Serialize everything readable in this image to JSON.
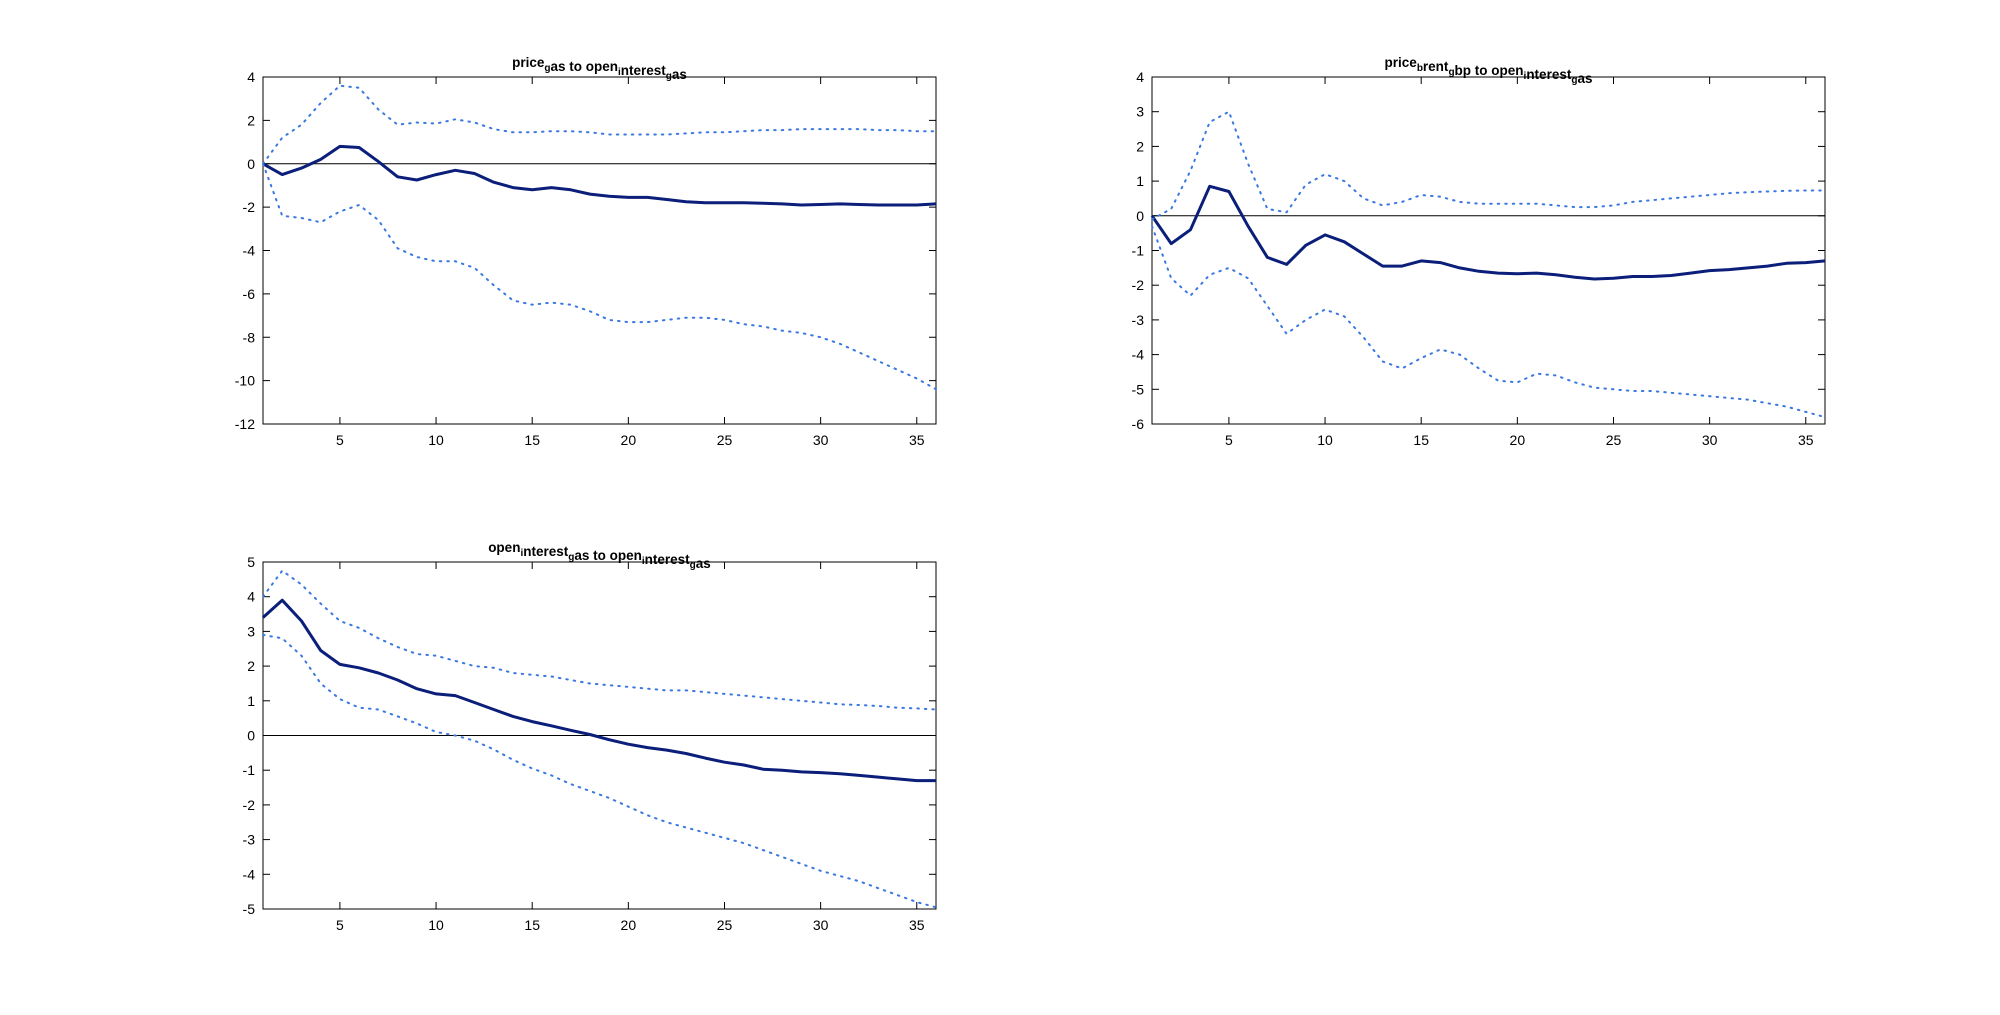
{
  "chart_data": [
    {
      "type": "line",
      "title_parts": [
        [
          "price",
          false
        ],
        [
          "g",
          true
        ],
        [
          "as to open",
          false
        ],
        [
          "i",
          true
        ],
        [
          "nterest",
          false
        ],
        [
          "g",
          true
        ],
        [
          "as",
          false
        ]
      ],
      "x": [
        1,
        2,
        3,
        4,
        5,
        6,
        7,
        8,
        9,
        10,
        11,
        12,
        13,
        14,
        15,
        16,
        17,
        18,
        19,
        20,
        21,
        22,
        23,
        24,
        25,
        26,
        27,
        28,
        29,
        30,
        31,
        32,
        33,
        34,
        35,
        36
      ],
      "xlim": [
        1,
        36
      ],
      "ylim": [
        -12,
        4
      ],
      "xticks": [
        5,
        10,
        15,
        20,
        25,
        30,
        35
      ],
      "yticks": [
        -12,
        -10,
        -8,
        -6,
        -4,
        -2,
        0,
        2,
        4
      ],
      "zero_line": 0,
      "series": [
        {
          "role": "estimate",
          "color": "#0a1e7a",
          "style": "solid",
          "values": [
            0,
            -0.5,
            -0.2,
            0.2,
            0.8,
            0.75,
            0.1,
            -0.6,
            -0.75,
            -0.5,
            -0.3,
            -0.45,
            -0.85,
            -1.1,
            -1.2,
            -1.1,
            -1.2,
            -1.4,
            -1.5,
            -1.55,
            -1.55,
            -1.65,
            -1.75,
            -1.8,
            -1.8,
            -1.8,
            -1.82,
            -1.85,
            -1.9,
            -1.88,
            -1.85,
            -1.88,
            -1.9,
            -1.9,
            -1.9,
            -1.85
          ]
        },
        {
          "role": "upper",
          "color": "#3a78e0",
          "style": "dotted",
          "values": [
            0,
            1.2,
            1.8,
            2.8,
            3.6,
            3.5,
            2.5,
            1.8,
            1.9,
            1.85,
            2.05,
            1.9,
            1.6,
            1.45,
            1.45,
            1.5,
            1.5,
            1.45,
            1.35,
            1.35,
            1.35,
            1.35,
            1.4,
            1.45,
            1.45,
            1.5,
            1.55,
            1.55,
            1.6,
            1.6,
            1.6,
            1.6,
            1.55,
            1.55,
            1.5,
            1.5
          ]
        },
        {
          "role": "lower",
          "color": "#3a78e0",
          "style": "dotted",
          "values": [
            0,
            -2.4,
            -2.5,
            -2.7,
            -2.2,
            -1.9,
            -2.6,
            -3.9,
            -4.3,
            -4.5,
            -4.5,
            -4.8,
            -5.6,
            -6.3,
            -6.5,
            -6.4,
            -6.5,
            -6.8,
            -7.2,
            -7.3,
            -7.3,
            -7.2,
            -7.1,
            -7.1,
            -7.2,
            -7.4,
            -7.5,
            -7.7,
            -7.8,
            -8.0,
            -8.3,
            -8.7,
            -9.1,
            -9.5,
            -9.9,
            -10.4
          ]
        }
      ]
    },
    {
      "type": "line",
      "title_parts": [
        [
          "price",
          false
        ],
        [
          "b",
          true
        ],
        [
          "rent",
          false
        ],
        [
          "g",
          true
        ],
        [
          "bp to open",
          false
        ],
        [
          "i",
          true
        ],
        [
          "nterest",
          false
        ],
        [
          "g",
          true
        ],
        [
          "as",
          false
        ]
      ],
      "x": [
        1,
        2,
        3,
        4,
        5,
        6,
        7,
        8,
        9,
        10,
        11,
        12,
        13,
        14,
        15,
        16,
        17,
        18,
        19,
        20,
        21,
        22,
        23,
        24,
        25,
        26,
        27,
        28,
        29,
        30,
        31,
        32,
        33,
        34,
        35,
        36
      ],
      "xlim": [
        1,
        36
      ],
      "ylim": [
        -6,
        4
      ],
      "xticks": [
        5,
        10,
        15,
        20,
        25,
        30,
        35
      ],
      "yticks": [
        -6,
        -5,
        -4,
        -3,
        -2,
        -1,
        0,
        1,
        2,
        3,
        4
      ],
      "zero_line": 0,
      "series": [
        {
          "role": "estimate",
          "color": "#0a1e7a",
          "style": "solid",
          "values": [
            0,
            -0.8,
            -0.4,
            0.85,
            0.7,
            -0.3,
            -1.2,
            -1.4,
            -0.85,
            -0.55,
            -0.75,
            -1.1,
            -1.45,
            -1.45,
            -1.3,
            -1.35,
            -1.5,
            -1.6,
            -1.65,
            -1.67,
            -1.65,
            -1.7,
            -1.77,
            -1.82,
            -1.8,
            -1.75,
            -1.75,
            -1.72,
            -1.65,
            -1.58,
            -1.55,
            -1.5,
            -1.45,
            -1.37,
            -1.35,
            -1.3
          ]
        },
        {
          "role": "upper",
          "color": "#3a78e0",
          "style": "dotted",
          "values": [
            -0.1,
            0.2,
            1.3,
            2.7,
            3.0,
            1.5,
            0.2,
            0.1,
            0.9,
            1.2,
            1.0,
            0.5,
            0.3,
            0.4,
            0.6,
            0.55,
            0.4,
            0.35,
            0.35,
            0.35,
            0.35,
            0.3,
            0.25,
            0.25,
            0.3,
            0.4,
            0.45,
            0.5,
            0.55,
            0.6,
            0.65,
            0.68,
            0.7,
            0.72,
            0.73,
            0.73
          ]
        },
        {
          "role": "lower",
          "color": "#3a78e0",
          "style": "dotted",
          "values": [
            -0.3,
            -1.8,
            -2.3,
            -1.7,
            -1.5,
            -1.8,
            -2.6,
            -3.4,
            -3.0,
            -2.7,
            -2.9,
            -3.5,
            -4.2,
            -4.4,
            -4.1,
            -3.85,
            -4.0,
            -4.4,
            -4.75,
            -4.8,
            -4.55,
            -4.6,
            -4.8,
            -4.95,
            -5.0,
            -5.05,
            -5.05,
            -5.1,
            -5.15,
            -5.2,
            -5.25,
            -5.3,
            -5.4,
            -5.5,
            -5.65,
            -5.8
          ]
        }
      ]
    },
    {
      "type": "line",
      "title_parts": [
        [
          "open",
          false
        ],
        [
          "i",
          true
        ],
        [
          "nterest",
          false
        ],
        [
          "g",
          true
        ],
        [
          "as to open",
          false
        ],
        [
          "i",
          true
        ],
        [
          "nterest",
          false
        ],
        [
          "g",
          true
        ],
        [
          "as",
          false
        ]
      ],
      "x": [
        1,
        2,
        3,
        4,
        5,
        6,
        7,
        8,
        9,
        10,
        11,
        12,
        13,
        14,
        15,
        16,
        17,
        18,
        19,
        20,
        21,
        22,
        23,
        24,
        25,
        26,
        27,
        28,
        29,
        30,
        31,
        32,
        33,
        34,
        35,
        36
      ],
      "xlim": [
        1,
        36
      ],
      "ylim": [
        -5,
        5
      ],
      "xticks": [
        5,
        10,
        15,
        20,
        25,
        30,
        35
      ],
      "yticks": [
        -5,
        -4,
        -3,
        -2,
        -1,
        0,
        1,
        2,
        3,
        4,
        5
      ],
      "zero_line": 0,
      "series": [
        {
          "role": "estimate",
          "color": "#0a1e7a",
          "style": "solid",
          "values": [
            3.4,
            3.9,
            3.3,
            2.45,
            2.05,
            1.95,
            1.8,
            1.6,
            1.35,
            1.2,
            1.15,
            0.95,
            0.75,
            0.55,
            0.4,
            0.28,
            0.15,
            0.03,
            -0.12,
            -0.25,
            -0.35,
            -0.42,
            -0.52,
            -0.65,
            -0.77,
            -0.85,
            -0.97,
            -1.0,
            -1.05,
            -1.07,
            -1.1,
            -1.15,
            -1.2,
            -1.25,
            -1.3,
            -1.3
          ]
        },
        {
          "role": "upper",
          "color": "#3a78e0",
          "style": "dotted",
          "values": [
            4.0,
            4.75,
            4.35,
            3.8,
            3.3,
            3.1,
            2.8,
            2.55,
            2.35,
            2.3,
            2.15,
            2.0,
            1.95,
            1.8,
            1.75,
            1.7,
            1.6,
            1.5,
            1.45,
            1.4,
            1.35,
            1.3,
            1.3,
            1.25,
            1.2,
            1.15,
            1.1,
            1.05,
            1.0,
            0.95,
            0.9,
            0.88,
            0.85,
            0.8,
            0.78,
            0.75
          ]
        },
        {
          "role": "lower",
          "color": "#3a78e0",
          "style": "dotted",
          "values": [
            2.9,
            2.8,
            2.3,
            1.5,
            1.05,
            0.8,
            0.75,
            0.55,
            0.35,
            0.1,
            0.0,
            -0.15,
            -0.4,
            -0.7,
            -0.95,
            -1.15,
            -1.4,
            -1.6,
            -1.8,
            -2.05,
            -2.3,
            -2.5,
            -2.65,
            -2.8,
            -2.95,
            -3.1,
            -3.3,
            -3.5,
            -3.7,
            -3.9,
            -4.05,
            -4.2,
            -4.4,
            -4.6,
            -4.8,
            -4.95
          ]
        }
      ]
    }
  ]
}
